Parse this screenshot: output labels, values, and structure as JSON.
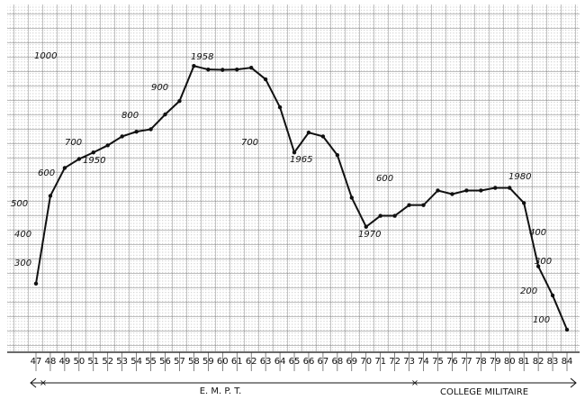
{
  "chart_data": {
    "type": "line",
    "color": "#111111",
    "categories": [
      "47",
      "48",
      "49",
      "50",
      "51",
      "52",
      "53",
      "54",
      "55",
      "56",
      "57",
      "58",
      "59",
      "60",
      "61",
      "62",
      "63",
      "64",
      "65",
      "66",
      "67",
      "68",
      "69",
      "70",
      "71",
      "72",
      "73",
      "74",
      "75",
      "76",
      "77",
      "78",
      "79",
      "80",
      "81",
      "82",
      "83",
      "84"
    ],
    "values": [
      231,
      526,
      620,
      650,
      672,
      696,
      726,
      742,
      750,
      800,
      845,
      963,
      951,
      950,
      951,
      957,
      918,
      824,
      672,
      739,
      726,
      663,
      520,
      422,
      459,
      459,
      495,
      495,
      544,
      532,
      544,
      544,
      553,
      553,
      502,
      289,
      191,
      76
    ],
    "ylim": [
      0,
      1100
    ],
    "annotations": [
      "1000",
      "900",
      "800",
      "700",
      "600",
      "1950",
      "1958",
      "700",
      "1965",
      "600",
      "1970",
      "1980",
      "400",
      "300",
      "200",
      "100",
      "500",
      "400",
      "300"
    ],
    "periods": [
      "E. M. P. T.",
      "COLLEGE MILITAIRE"
    ]
  }
}
